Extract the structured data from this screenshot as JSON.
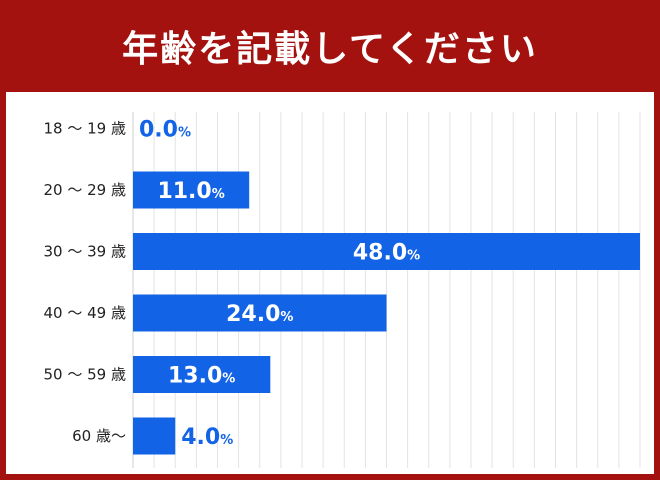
{
  "title": "年齢を記載してください",
  "colors": {
    "header_bg": "#a3120f",
    "panel_bg": "#ffffff",
    "bar": "#1363e6",
    "label_outside": "#1363e6",
    "label_inside": "#ffffff",
    "grid": "#e3e3e3"
  },
  "chart_data": {
    "type": "bar",
    "orientation": "horizontal",
    "categories": [
      "18 ～ 19 歳",
      "20 ～ 29 歳",
      "30 ～ 39 歳",
      "40 ～ 49 歳",
      "50 ～ 59 歳",
      "60 歳～"
    ],
    "values": [
      0.0,
      11.0,
      48.0,
      24.0,
      13.0,
      4.0
    ],
    "value_labels": [
      "0.0",
      "11.0",
      "48.0",
      "24.0",
      "13.0",
      "4.0"
    ],
    "unit": "%",
    "xlim": [
      0,
      48
    ],
    "grid": true,
    "title": "年齢を記載してください"
  }
}
